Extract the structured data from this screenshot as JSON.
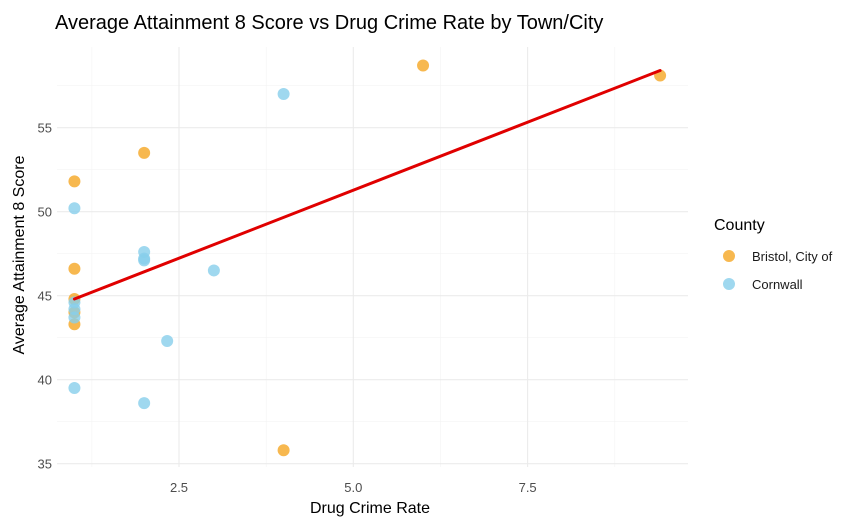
{
  "chart_data": {
    "type": "scatter",
    "title": "Average Attainment 8 Score vs Drug Crime Rate by Town/City",
    "xlabel": "Drug Crime Rate",
    "ylabel": "Average Attainment 8 Score",
    "xlim": [
      0.75,
      9.8
    ],
    "ylim": [
      34.8,
      59.8
    ],
    "x_ticks": [
      2.5,
      5.0,
      7.5
    ],
    "x_tick_labels": [
      "2.5",
      "5.0",
      "7.5"
    ],
    "y_ticks": [
      35,
      40,
      45,
      50,
      55
    ],
    "y_tick_labels": [
      "35",
      "40",
      "45",
      "50",
      "55"
    ],
    "grid": true,
    "legend": {
      "title": "County",
      "position": "right"
    },
    "series": [
      {
        "name": "Bristol, City of",
        "color": "#f5a623",
        "points": [
          {
            "x": 1,
            "y": 51.8
          },
          {
            "x": 1,
            "y": 46.6
          },
          {
            "x": 1,
            "y": 44.8
          },
          {
            "x": 1,
            "y": 44.0
          },
          {
            "x": 1,
            "y": 43.3
          },
          {
            "x": 2,
            "y": 53.5
          },
          {
            "x": 4,
            "y": 35.8
          },
          {
            "x": 6,
            "y": 58.7
          },
          {
            "x": 9.4,
            "y": 58.1
          }
        ]
      },
      {
        "name": "Cornwall",
        "color": "#87ceeb",
        "points": [
          {
            "x": 1,
            "y": 50.2
          },
          {
            "x": 1,
            "y": 44.6
          },
          {
            "x": 1,
            "y": 44.2
          },
          {
            "x": 1,
            "y": 43.7
          },
          {
            "x": 1,
            "y": 39.5
          },
          {
            "x": 2,
            "y": 47.6
          },
          {
            "x": 2,
            "y": 47.2
          },
          {
            "x": 2,
            "y": 47.1
          },
          {
            "x": 2,
            "y": 38.6
          },
          {
            "x": 2.33,
            "y": 42.3
          },
          {
            "x": 3,
            "y": 46.5
          },
          {
            "x": 4,
            "y": 57.0
          }
        ]
      }
    ],
    "trend_line": {
      "color": "#e00000",
      "x": [
        1,
        9.4
      ],
      "y": [
        44.8,
        58.4
      ]
    }
  }
}
